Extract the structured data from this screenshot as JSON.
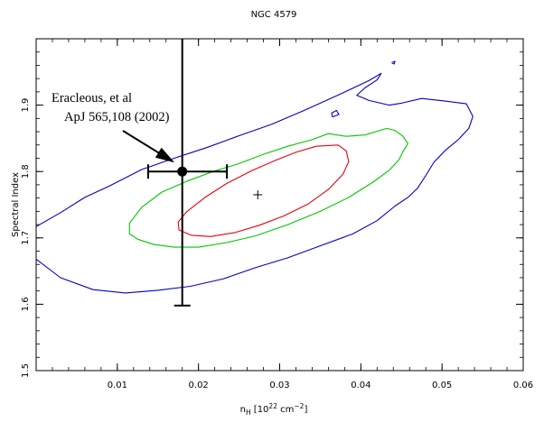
{
  "chart_data": {
    "type": "contour",
    "title": "NGC 4579",
    "xlabel": {
      "base": "n",
      "sub": "H",
      "units_pre": " [10",
      "exp": "22",
      "units_mid": " cm",
      "units_exp": "−2",
      "units_post": "]"
    },
    "ylabel": "Spectral Index",
    "xlim": [
      0.0,
      0.06
    ],
    "ylim": [
      1.5,
      2.0
    ],
    "xticks": [
      {
        "value": 0.01,
        "label": "0.01"
      },
      {
        "value": 0.02,
        "label": "0.02"
      },
      {
        "value": 0.03,
        "label": "0.03"
      },
      {
        "value": 0.04,
        "label": "0.04"
      },
      {
        "value": 0.05,
        "label": "0.05"
      },
      {
        "value": 0.06,
        "label": "0.06"
      }
    ],
    "yticks": [
      {
        "value": 1.5,
        "label": "1.5"
      },
      {
        "value": 1.6,
        "label": "1.6"
      },
      {
        "value": 1.7,
        "label": "1.7"
      },
      {
        "value": 1.8,
        "label": "1.8"
      },
      {
        "value": 1.9,
        "label": "1.9"
      }
    ],
    "best_fit": {
      "x": 0.0273,
      "y": 1.765
    },
    "contours": [
      {
        "color": "#e8000b",
        "points": [
          [
            0.0372,
            1.84
          ],
          [
            0.0345,
            1.838
          ],
          [
            0.032,
            1.829
          ],
          [
            0.0295,
            1.817
          ],
          [
            0.0265,
            1.801
          ],
          [
            0.0235,
            1.782
          ],
          [
            0.0208,
            1.761
          ],
          [
            0.0186,
            1.74
          ],
          [
            0.0175,
            1.724
          ],
          [
            0.0176,
            1.712
          ],
          [
            0.0191,
            1.704
          ],
          [
            0.0215,
            1.702
          ],
          [
            0.0245,
            1.708
          ],
          [
            0.0275,
            1.719
          ],
          [
            0.0305,
            1.733
          ],
          [
            0.0335,
            1.751
          ],
          [
            0.036,
            1.773
          ],
          [
            0.0378,
            1.796
          ],
          [
            0.0385,
            1.815
          ],
          [
            0.0382,
            1.831
          ],
          [
            0.0372,
            1.84
          ]
        ]
      },
      {
        "color": "#00c800",
        "points": [
          [
            0.0432,
            1.865
          ],
          [
            0.0405,
            1.855
          ],
          [
            0.0382,
            1.853
          ],
          [
            0.036,
            1.857
          ],
          [
            0.034,
            1.848
          ],
          [
            0.031,
            1.838
          ],
          [
            0.028,
            1.826
          ],
          [
            0.025,
            1.812
          ],
          [
            0.0218,
            1.8
          ],
          [
            0.0185,
            1.785
          ],
          [
            0.0155,
            1.769
          ],
          [
            0.013,
            1.746
          ],
          [
            0.0115,
            1.722
          ],
          [
            0.0115,
            1.706
          ],
          [
            0.0125,
            1.698
          ],
          [
            0.0145,
            1.69
          ],
          [
            0.017,
            1.686
          ],
          [
            0.02,
            1.686
          ],
          [
            0.0235,
            1.693
          ],
          [
            0.027,
            1.703
          ],
          [
            0.031,
            1.72
          ],
          [
            0.035,
            1.74
          ],
          [
            0.0385,
            1.761
          ],
          [
            0.0415,
            1.784
          ],
          [
            0.0435,
            1.802
          ],
          [
            0.0447,
            1.818
          ],
          [
            0.0452,
            1.83
          ],
          [
            0.0458,
            1.842
          ],
          [
            0.0452,
            1.853
          ],
          [
            0.0442,
            1.862
          ],
          [
            0.0432,
            1.865
          ]
        ]
      },
      {
        "color": "#0000c8",
        "points": [
          [
            0.0,
            1.717
          ],
          [
            0.003,
            1.738
          ],
          [
            0.006,
            1.761
          ],
          [
            0.009,
            1.778
          ],
          [
            0.013,
            1.803
          ],
          [
            0.017,
            1.82
          ],
          [
            0.021,
            1.836
          ],
          [
            0.025,
            1.854
          ],
          [
            0.029,
            1.871
          ],
          [
            0.033,
            1.892
          ],
          [
            0.037,
            1.914
          ],
          [
            0.041,
            1.937
          ],
          [
            0.0425,
            1.948
          ],
          [
            0.042,
            1.938
          ],
          [
            0.0405,
            1.926
          ],
          [
            0.0395,
            1.915
          ],
          [
            0.041,
            1.907
          ],
          [
            0.0435,
            1.9
          ],
          [
            0.045,
            1.903
          ],
          [
            0.0475,
            1.91
          ],
          [
            0.0505,
            1.906
          ],
          [
            0.053,
            1.902
          ],
          [
            0.0538,
            1.883
          ],
          [
            0.0533,
            1.865
          ],
          [
            0.052,
            1.848
          ],
          [
            0.0505,
            1.833
          ],
          [
            0.049,
            1.814
          ],
          [
            0.048,
            1.794
          ],
          [
            0.047,
            1.775
          ],
          [
            0.0458,
            1.761
          ],
          [
            0.0442,
            1.748
          ],
          [
            0.042,
            1.726
          ],
          [
            0.039,
            1.706
          ],
          [
            0.035,
            1.688
          ],
          [
            0.031,
            1.67
          ],
          [
            0.027,
            1.655
          ],
          [
            0.023,
            1.638
          ],
          [
            0.019,
            1.627
          ],
          [
            0.015,
            1.621
          ],
          [
            0.011,
            1.617
          ],
          [
            0.007,
            1.622
          ],
          [
            0.003,
            1.64
          ],
          [
            0.0,
            1.668
          ]
        ]
      },
      {
        "color": "#0000c8",
        "points": [
          [
            0.0365,
            1.882
          ],
          [
            0.0373,
            1.886
          ],
          [
            0.037,
            1.892
          ],
          [
            0.0364,
            1.888
          ],
          [
            0.0365,
            1.882
          ]
        ]
      },
      {
        "color": "#0000c8",
        "points": [
          [
            0.0438,
            1.964
          ],
          [
            0.0442,
            1.966
          ],
          [
            0.0441,
            1.962
          ],
          [
            0.0438,
            1.964
          ]
        ]
      }
    ],
    "measurement": {
      "x": 0.018,
      "y": 1.8,
      "x_low": 0.0138,
      "x_high": 0.0235,
      "y_low": 1.598,
      "y_high": 2.0
    },
    "annotation": {
      "line1": "Eracleous, et al",
      "line2": "ApJ 565,108 (2002)"
    }
  }
}
